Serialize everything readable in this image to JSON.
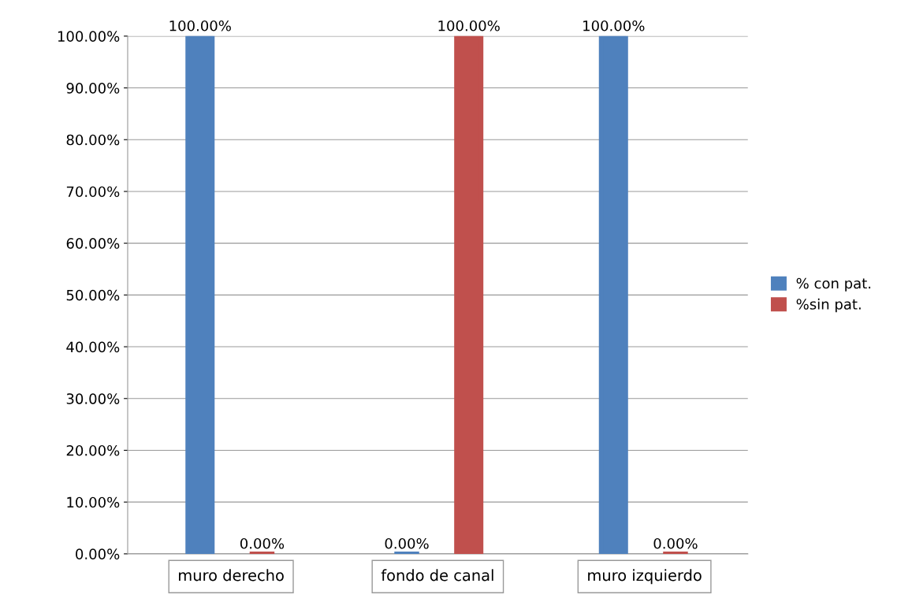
{
  "chart_data": {
    "type": "bar",
    "categories": [
      "muro derecho",
      "fondo de canal",
      "muro izquierdo"
    ],
    "series": [
      {
        "name": "% con pat.",
        "color": "#4f81bd",
        "values": [
          100,
          0,
          100
        ],
        "value_labels": [
          "100.00%",
          "0.00%",
          "100.00%"
        ]
      },
      {
        "name": "%sin pat.",
        "color": "#c0504d",
        "values": [
          0,
          100,
          0
        ],
        "value_labels": [
          "0.00%",
          "100.00%",
          "0.00%"
        ]
      }
    ],
    "ylim": [
      0,
      100
    ],
    "yticks": [
      {
        "value": 0,
        "label": "0.00%"
      },
      {
        "value": 10,
        "label": "10.00%"
      },
      {
        "value": 20,
        "label": "20.00%"
      },
      {
        "value": 30,
        "label": "30.00%"
      },
      {
        "value": 40,
        "label": "40.00%"
      },
      {
        "value": 50,
        "label": "50.00%"
      },
      {
        "value": 60,
        "label": "60.00%"
      },
      {
        "value": 70,
        "label": "70.00%"
      },
      {
        "value": 80,
        "label": "80.00%"
      },
      {
        "value": 90,
        "label": "90.00%"
      },
      {
        "value": 100,
        "label": "100.00%"
      }
    ],
    "grid": "y",
    "legend": "right"
  }
}
